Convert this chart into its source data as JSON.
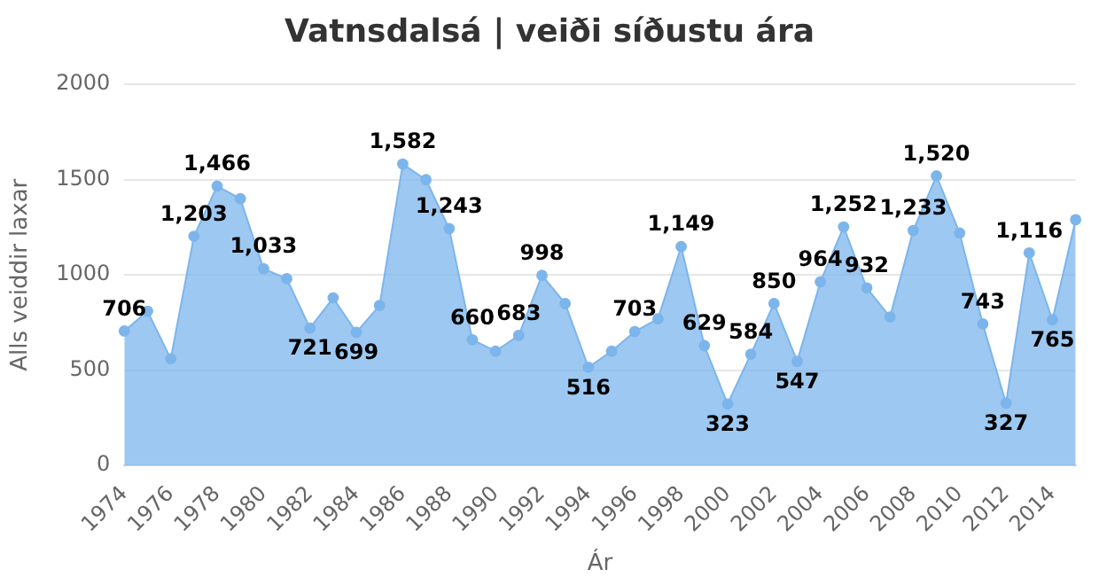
{
  "chart_data": {
    "type": "area",
    "title": "Vatnsdalsá | veiði síðustu ára",
    "xlabel": "Ár",
    "ylabel": "Alls veiddir laxar",
    "categories": [
      "1974",
      null,
      "1976",
      null,
      "1978",
      null,
      "1980",
      null,
      "1982",
      null,
      "1984",
      null,
      "1986",
      null,
      "1988",
      null,
      "1990",
      null,
      "1992",
      null,
      "1994",
      null,
      "1996",
      null,
      "1998",
      null,
      "2000",
      null,
      "2002",
      null,
      "2004",
      null,
      "2006",
      null,
      "2008",
      null,
      "2010",
      null,
      "2012",
      null,
      "2014",
      null
    ],
    "series": [
      {
        "color": "#7cb5ec",
        "values": [
          706,
          810,
          560,
          1203,
          1466,
          1400,
          1033,
          980,
          721,
          880,
          699,
          840,
          1582,
          1500,
          1243,
          660,
          600,
          683,
          998,
          850,
          516,
          600,
          703,
          770,
          1149,
          629,
          323,
          584,
          850,
          547,
          964,
          1252,
          932,
          780,
          1233,
          1520,
          1220,
          743,
          327,
          1116,
          765,
          1290
        ],
        "value_labels": [
          "706",
          null,
          null,
          "1,203",
          "1,466",
          null,
          "1,033",
          null,
          "721",
          null,
          "699",
          null,
          "1,582",
          null,
          "1,243",
          "660",
          null,
          "683",
          "998",
          null,
          "516",
          null,
          "703",
          null,
          "1,149",
          "629",
          "323",
          "584",
          "850",
          "547",
          "964",
          "1,252",
          "932",
          null,
          "1,233",
          "1,520",
          null,
          "743",
          "327",
          "1,116",
          "765",
          null
        ]
      }
    ],
    "ylim": [
      0,
      2000
    ],
    "yticks": [
      0,
      500,
      1000,
      1500,
      2000
    ],
    "grid": "y",
    "legend": false,
    "marker": "circle"
  }
}
